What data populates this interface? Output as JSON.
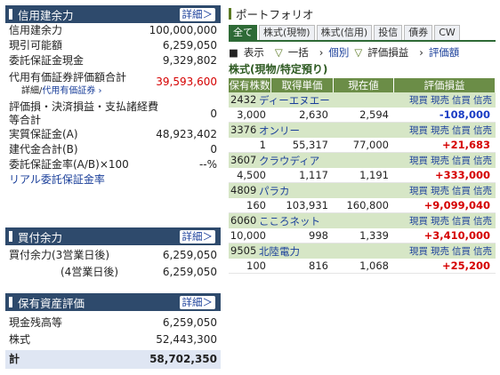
{
  "credit_panel": {
    "title": "信用建余力",
    "detail_label": "詳細＞",
    "rows": [
      {
        "label": "信用建余力",
        "value": "100,000,000"
      },
      {
        "label": "現引可能額",
        "value": "6,259,050"
      },
      {
        "label": "委託保証金現金",
        "value": "9,329,802"
      },
      {
        "label": "代用有価証券評価額合計",
        "value": "39,593,600"
      },
      {
        "label": "評価損・決済損益・支払諸経費等合計",
        "value": "0"
      },
      {
        "label": "実質保証金(A)",
        "value": "48,923,402"
      },
      {
        "label": "建代金合計(B)",
        "value": "0"
      },
      {
        "label": "委託保証金率(A/B)×100",
        "value": "--%"
      }
    ],
    "sub_detail_label": "詳細",
    "sub_link_label": "代用有価証券 ›",
    "realtime_link": "リアル委託保証金率"
  },
  "buy_panel": {
    "title": "買付余力",
    "detail_label": "詳細＞",
    "rows": [
      {
        "label": "買付余力(3営業日後)",
        "value": "6,259,050"
      },
      {
        "label": "(4営業日後)",
        "value": "6,259,050"
      }
    ]
  },
  "assets_panel": {
    "title": "保有資産評価",
    "detail_label": "詳細＞",
    "rows": [
      {
        "label": "現金残高等",
        "value": "6,259,050"
      },
      {
        "label": "株式",
        "value": "52,443,300"
      }
    ],
    "total_label": "計",
    "total_value": "58,702,350"
  },
  "portfolio": {
    "title": "ポートフォリオ",
    "tabs": [
      "全て",
      "株式(現物)",
      "株式(信用)",
      "投信",
      "債券",
      "CW"
    ],
    "active_tab": 0,
    "options": {
      "display": "表示",
      "bulk": "一括",
      "individual": "個別",
      "pl": "評価損益",
      "amount": "評価額"
    },
    "section_title": "株式(現物/特定預り)",
    "columns": [
      "保有株数",
      "取得単価",
      "現在値",
      "評価損益"
    ],
    "actions": [
      "現買",
      "現売",
      "信買",
      "信売"
    ],
    "stocks": [
      {
        "code": "2432",
        "name": "ディーエヌエー",
        "qty": "3,000",
        "cost": "2,630",
        "price": "2,594",
        "pl": "-108,000",
        "sign": "minus"
      },
      {
        "code": "3376",
        "name": "オンリー",
        "qty": "1",
        "cost": "55,317",
        "price": "77,000",
        "pl": "+21,683",
        "sign": "plus"
      },
      {
        "code": "3607",
        "name": "クラウディア",
        "qty": "4,500",
        "cost": "1,117",
        "price": "1,191",
        "pl": "+333,000",
        "sign": "plus"
      },
      {
        "code": "4809",
        "name": "パラカ",
        "qty": "160",
        "cost": "103,931",
        "price": "160,800",
        "pl": "+9,099,040",
        "sign": "plus"
      },
      {
        "code": "6060",
        "name": "こころネット",
        "qty": "10,000",
        "cost": "998",
        "price": "1,339",
        "pl": "+3,410,000",
        "sign": "plus"
      },
      {
        "code": "9505",
        "name": "北陸電力",
        "qty": "100",
        "cost": "816",
        "price": "1,068",
        "pl": "+25,200",
        "sign": "plus"
      }
    ]
  }
}
